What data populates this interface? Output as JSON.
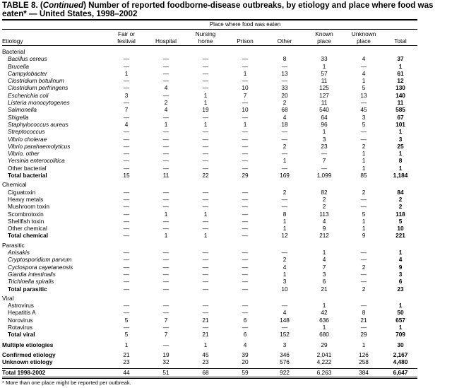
{
  "title": {
    "prefix": "TABLE 8. (",
    "continued": "Continued",
    "suffix": ") Number of reported foodborne-disease outbreaks, by etiology and place where food was eaten* — United States, 1998–2002"
  },
  "header": {
    "group": "Place where food was eaten",
    "etiology": "Etiology",
    "columns": [
      [
        "Fair or",
        "festival"
      ],
      [
        "",
        "Hospital"
      ],
      [
        "Nursing",
        "home"
      ],
      [
        "",
        "Prison"
      ],
      [
        "",
        "Other"
      ],
      [
        "Known",
        "place"
      ],
      [
        "Unknown",
        "place"
      ],
      [
        "",
        "Total"
      ]
    ]
  },
  "sections": [
    {
      "label": "Bacterial",
      "rows": [
        {
          "name": "Bacillus cereus",
          "style": "it",
          "v": [
            "—",
            "—",
            "—",
            "—",
            "8",
            "33",
            "4",
            "37"
          ]
        },
        {
          "name": "Brucella",
          "style": "it",
          "v": [
            "—",
            "—",
            "—",
            "—",
            "—",
            "1",
            "—",
            "1"
          ]
        },
        {
          "name": "Campylobacter",
          "style": "it",
          "v": [
            "1",
            "—",
            "—",
            "1",
            "13",
            "57",
            "4",
            "61"
          ]
        },
        {
          "name": "Clostridium botulinum",
          "style": "it",
          "v": [
            "—",
            "—",
            "—",
            "—",
            "—",
            "11",
            "1",
            "12"
          ]
        },
        {
          "name": "Clostridium perfringens",
          "style": "it",
          "v": [
            "—",
            "4",
            "—",
            "10",
            "33",
            "125",
            "5",
            "130"
          ]
        },
        {
          "name": "Escherichia coli",
          "style": "it",
          "v": [
            "3",
            "—",
            "1",
            "7",
            "20",
            "127",
            "13",
            "140"
          ]
        },
        {
          "name": "Listeria monocytogenes",
          "style": "it",
          "v": [
            "—",
            "2",
            "1",
            "—",
            "2",
            "11",
            "—",
            "11"
          ]
        },
        {
          "name": "Salmonella",
          "style": "it",
          "v": [
            "7",
            "4",
            "19",
            "10",
            "68",
            "540",
            "45",
            "585"
          ]
        },
        {
          "name": "Shigella",
          "style": "it",
          "v": [
            "—",
            "—",
            "—",
            "—",
            "4",
            "64",
            "3",
            "67"
          ]
        },
        {
          "name": "Staphylococcus aureus",
          "style": "it",
          "v": [
            "4",
            "1",
            "1",
            "1",
            "18",
            "96",
            "5",
            "101"
          ]
        },
        {
          "name": "Streptococcus",
          "style": "it",
          "v": [
            "—",
            "—",
            "—",
            "—",
            "—",
            "1",
            "—",
            "1"
          ]
        },
        {
          "name": "Vibrio cholerae",
          "style": "it",
          "v": [
            "—",
            "—",
            "—",
            "—",
            "—",
            "3",
            "—",
            "3"
          ]
        },
        {
          "name": "Vibrio parahaemolyticus",
          "style": "it",
          "v": [
            "—",
            "—",
            "—",
            "—",
            "2",
            "23",
            "2",
            "25"
          ]
        },
        {
          "name": "Vibrio, other",
          "style": "it",
          "v": [
            "—",
            "—",
            "—",
            "—",
            "—",
            "—",
            "1",
            "1"
          ]
        },
        {
          "name": "Yersinia enterocolitica",
          "style": "it",
          "v": [
            "—",
            "—",
            "—",
            "—",
            "1",
            "7",
            "1",
            "8"
          ]
        },
        {
          "name": "Other bacterial",
          "style": "pl",
          "v": [
            "—",
            "—",
            "—",
            "—",
            "—",
            "—",
            "1",
            "1"
          ]
        },
        {
          "name": "Total bacterial",
          "style": "tot",
          "v": [
            "15",
            "11",
            "22",
            "29",
            "169",
            "1,099",
            "85",
            "1,184"
          ]
        }
      ]
    },
    {
      "label": "Chemical",
      "rows": [
        {
          "name": "Ciguatoxin",
          "style": "pl",
          "v": [
            "—",
            "—",
            "—",
            "—",
            "2",
            "82",
            "2",
            "84"
          ]
        },
        {
          "name": "Heavy metals",
          "style": "pl",
          "v": [
            "—",
            "—",
            "—",
            "—",
            "—",
            "2",
            "—",
            "2"
          ]
        },
        {
          "name": "Mushroom toxin",
          "style": "pl",
          "v": [
            "—",
            "—",
            "—",
            "—",
            "—",
            "2",
            "—",
            "2"
          ]
        },
        {
          "name": "Scombrotoxin",
          "style": "pl",
          "v": [
            "—",
            "1",
            "1",
            "—",
            "8",
            "113",
            "5",
            "118"
          ]
        },
        {
          "name": "Shellfish toxin",
          "style": "pl",
          "v": [
            "—",
            "—",
            "—",
            "—",
            "1",
            "4",
            "1",
            "5"
          ]
        },
        {
          "name": "Other chemical",
          "style": "pl",
          "v": [
            "—",
            "—",
            "—",
            "—",
            "1",
            "9",
            "1",
            "10"
          ]
        },
        {
          "name": "Total chemical",
          "style": "tot",
          "v": [
            "—",
            "1",
            "1",
            "—",
            "12",
            "212",
            "9",
            "221"
          ]
        }
      ]
    },
    {
      "label": "Parasitic",
      "rows": [
        {
          "name": "Anisakis",
          "style": "it",
          "v": [
            "—",
            "—",
            "—",
            "—",
            "—",
            "1",
            "—",
            "1"
          ]
        },
        {
          "name": "Cryptosporidium parvum",
          "style": "it",
          "v": [
            "—",
            "—",
            "—",
            "—",
            "2",
            "4",
            "—",
            "4"
          ]
        },
        {
          "name": "Cyclospora cayetanensis",
          "style": "it",
          "v": [
            "—",
            "—",
            "—",
            "—",
            "4",
            "7",
            "2",
            "9"
          ]
        },
        {
          "name": "Giardia intestinalis",
          "style": "it",
          "v": [
            "—",
            "—",
            "—",
            "—",
            "1",
            "3",
            "—",
            "3"
          ]
        },
        {
          "name": "Trichinella spiralis",
          "style": "it",
          "v": [
            "—",
            "—",
            "—",
            "—",
            "3",
            "6",
            "—",
            "6"
          ]
        },
        {
          "name": "Total parasitic",
          "style": "tot",
          "v": [
            "—",
            "—",
            "—",
            "—",
            "10",
            "21",
            "2",
            "23"
          ]
        }
      ]
    },
    {
      "label": "Viral",
      "rows": [
        {
          "name": "Astrovirus",
          "style": "pl",
          "v": [
            "—",
            "—",
            "—",
            "—",
            "—",
            "1",
            "—",
            "1"
          ]
        },
        {
          "name": "Hepatitis A",
          "style": "pl",
          "v": [
            "—",
            "—",
            "—",
            "—",
            "4",
            "42",
            "8",
            "50"
          ]
        },
        {
          "name": "Norovirus",
          "style": "pl",
          "v": [
            "5",
            "7",
            "21",
            "6",
            "148",
            "636",
            "21",
            "657"
          ]
        },
        {
          "name": "Rotavirus",
          "style": "pl",
          "v": [
            "—",
            "—",
            "—",
            "—",
            "—",
            "1",
            "—",
            "1"
          ]
        },
        {
          "name": "Total viral",
          "style": "tot",
          "v": [
            "5",
            "7",
            "21",
            "6",
            "152",
            "680",
            "29",
            "709"
          ]
        }
      ]
    }
  ],
  "summary": [
    {
      "name": "Multiple etiologies",
      "v": [
        "1",
        "—",
        "1",
        "4",
        "3",
        "29",
        "1",
        "30"
      ],
      "gapBefore": true
    },
    {
      "name": "Confirmed etiology",
      "v": [
        "21",
        "19",
        "45",
        "39",
        "346",
        "2,041",
        "126",
        "2,167"
      ],
      "gapBefore": true
    },
    {
      "name": "Unknown etiology",
      "v": [
        "23",
        "32",
        "23",
        "20",
        "576",
        "4,222",
        "258",
        "4,480"
      ],
      "gapBefore": false
    },
    {
      "name": "Total 1998-2002",
      "v": [
        "44",
        "51",
        "68",
        "59",
        "922",
        "6,263",
        "384",
        "6,647"
      ],
      "gapBefore": true,
      "ruleBefore": true
    }
  ],
  "footnote": "* More than one place might be reported per outbreak."
}
